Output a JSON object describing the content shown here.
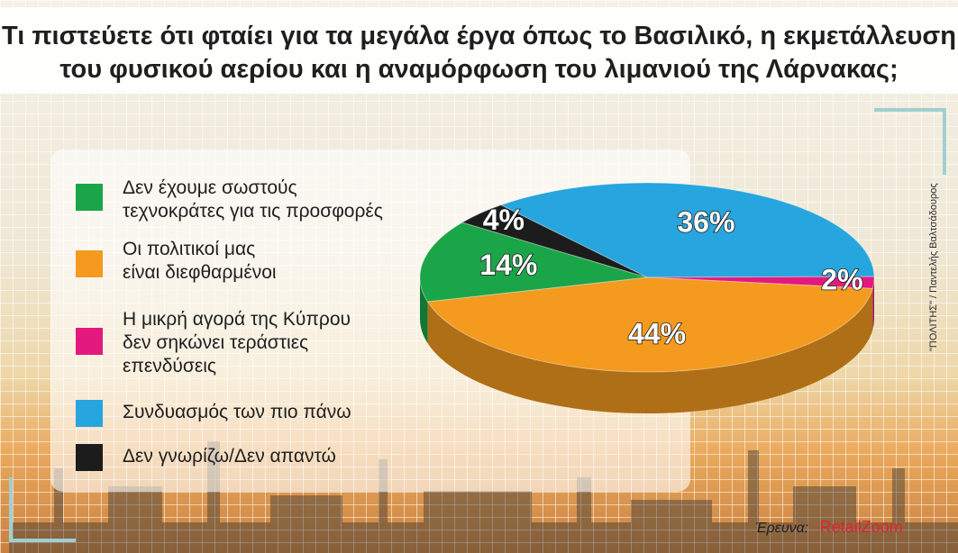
{
  "title": {
    "line1": "Τι πιστεύετε ότι φταίει για τα μεγάλα έργα όπως το Βασιλικό, η εκμετάλλευση",
    "line2": "του φυσικού αερίου και η αναμόρφωση του λιμανιού της Λάρνακας;"
  },
  "legend": [
    {
      "label": "Δεν έχουμε σωστούς\nτεχνοκράτες για τις προσφορές",
      "color": "#1aa548"
    },
    {
      "label": "Οι πολιτικοί μας\nείναι διεφθαρμένοι",
      "color": "#f39a1f"
    },
    {
      "label": "Η μικρή αγορά της Κύπρου\nδεν σηκώνει τεράστιες\nεπενδύσεις",
      "color": "#e4197f"
    },
    {
      "label": "Συνδυασμός των πιο πάνω",
      "color": "#27a5de"
    },
    {
      "label": "Δεν γνωρίζω/Δεν απαντώ",
      "color": "#1c1c1c"
    }
  ],
  "chart_data": {
    "type": "pie",
    "title": "Τι πιστεύετε ότι φταίει για τα μεγάλα έργα όπως το Βασιλικό, η εκμετάλλευση του φυσικού αερίου και η αναμόρφωση του λιμανιού της Λάρνακας;",
    "slices": [
      {
        "label": "Συνδυασμός των πιο πάνω",
        "value": 36,
        "display": "36%",
        "color": "#27a5de"
      },
      {
        "label": "Η μικρή αγορά της Κύπρου δεν σηκώνει τεράστιες επενδύσεις",
        "value": 2,
        "display": "2%",
        "color": "#e4197f"
      },
      {
        "label": "Οι πολιτικοί μας είναι διεφθαρμένοι",
        "value": 44,
        "display": "44%",
        "color": "#f39a1f"
      },
      {
        "label": "Δεν έχουμε σωστούς τεχνοκράτες για τις προσφορές",
        "value": 14,
        "display": "14%",
        "color": "#1aa548"
      },
      {
        "label": "Δεν γνωρίζω/Δεν απαντώ",
        "value": 4,
        "display": "4%",
        "color": "#1c1c1c"
      }
    ]
  },
  "credit": "\"ΠΟΛΙΤΗΣ\" / Παντελής Βαλτσάδουρος",
  "source": {
    "label": "Έρευνα:",
    "brand": "RetailZoom"
  }
}
